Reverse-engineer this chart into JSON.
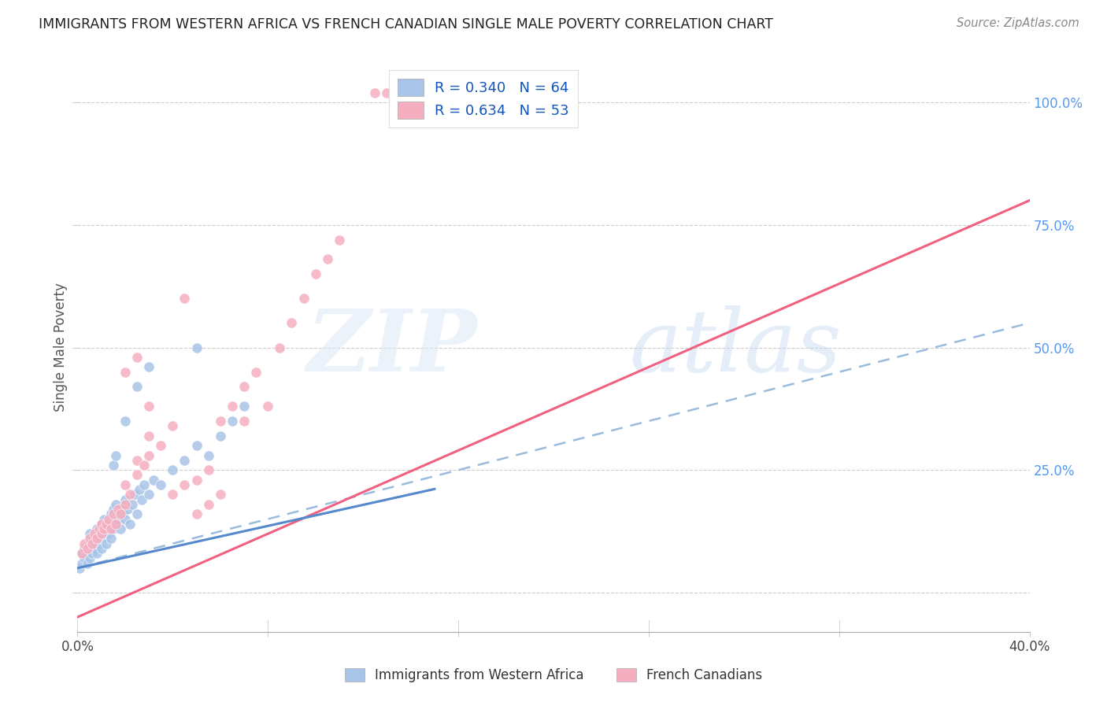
{
  "title": "IMMIGRANTS FROM WESTERN AFRICA VS FRENCH CANADIAN SINGLE MALE POVERTY CORRELATION CHART",
  "source": "Source: ZipAtlas.com",
  "ylabel": "Single Male Poverty",
  "ytick_labels": [
    "",
    "25.0%",
    "50.0%",
    "75.0%",
    "100.0%"
  ],
  "ytick_values": [
    0,
    25,
    50,
    75,
    100
  ],
  "xlim": [
    0,
    40
  ],
  "ylim": [
    -8,
    108
  ],
  "blue_R": 0.34,
  "blue_N": 64,
  "pink_R": 0.634,
  "pink_N": 53,
  "blue_color": "#a8c4e8",
  "pink_color": "#f5aec0",
  "blue_line_color": "#5588cc",
  "blue_dash_color": "#99bbdd",
  "pink_line_color": "#f06080",
  "blue_line_x0": 0,
  "blue_line_y0": 5.0,
  "blue_line_x1": 40,
  "blue_line_y1": 48.0,
  "blue_dash_x0": 0,
  "blue_dash_y0": 5.0,
  "blue_dash_x1": 40,
  "blue_dash_y1": 55.0,
  "pink_line_x0": 0,
  "pink_line_y0": -5.0,
  "pink_line_x1": 40,
  "pink_line_y1": 80.0,
  "watermark_zip": "ZIP",
  "watermark_atlas": "atlas",
  "blue_points": [
    [
      0.1,
      5
    ],
    [
      0.2,
      6
    ],
    [
      0.2,
      8
    ],
    [
      0.3,
      7
    ],
    [
      0.3,
      9
    ],
    [
      0.4,
      6
    ],
    [
      0.4,
      8
    ],
    [
      0.5,
      7
    ],
    [
      0.5,
      10
    ],
    [
      0.5,
      12
    ],
    [
      0.6,
      8
    ],
    [
      0.6,
      10
    ],
    [
      0.7,
      9
    ],
    [
      0.7,
      11
    ],
    [
      0.8,
      8
    ],
    [
      0.8,
      11
    ],
    [
      0.8,
      13
    ],
    [
      0.9,
      10
    ],
    [
      0.9,
      12
    ],
    [
      1.0,
      9
    ],
    [
      1.0,
      11
    ],
    [
      1.0,
      14
    ],
    [
      1.1,
      12
    ],
    [
      1.1,
      15
    ],
    [
      1.2,
      10
    ],
    [
      1.2,
      13
    ],
    [
      1.3,
      12
    ],
    [
      1.3,
      14
    ],
    [
      1.4,
      11
    ],
    [
      1.4,
      16
    ],
    [
      1.5,
      13
    ],
    [
      1.5,
      17
    ],
    [
      1.6,
      14
    ],
    [
      1.6,
      18
    ],
    [
      1.7,
      15
    ],
    [
      1.8,
      13
    ],
    [
      1.8,
      17
    ],
    [
      1.9,
      16
    ],
    [
      2.0,
      15
    ],
    [
      2.0,
      19
    ],
    [
      2.1,
      17
    ],
    [
      2.2,
      14
    ],
    [
      2.3,
      18
    ],
    [
      2.4,
      20
    ],
    [
      2.5,
      16
    ],
    [
      2.6,
      21
    ],
    [
      2.7,
      19
    ],
    [
      2.8,
      22
    ],
    [
      3.0,
      20
    ],
    [
      3.2,
      23
    ],
    [
      3.5,
      22
    ],
    [
      4.0,
      25
    ],
    [
      4.5,
      27
    ],
    [
      5.0,
      30
    ],
    [
      5.5,
      28
    ],
    [
      6.0,
      32
    ],
    [
      6.5,
      35
    ],
    [
      7.0,
      38
    ],
    [
      1.5,
      26
    ],
    [
      1.6,
      28
    ],
    [
      2.0,
      35
    ],
    [
      2.5,
      42
    ],
    [
      3.0,
      46
    ],
    [
      5.0,
      50
    ]
  ],
  "pink_points": [
    [
      0.2,
      8
    ],
    [
      0.3,
      10
    ],
    [
      0.4,
      9
    ],
    [
      0.5,
      11
    ],
    [
      0.6,
      10
    ],
    [
      0.7,
      12
    ],
    [
      0.8,
      11
    ],
    [
      0.9,
      13
    ],
    [
      1.0,
      12
    ],
    [
      1.0,
      14
    ],
    [
      1.1,
      13
    ],
    [
      1.2,
      14
    ],
    [
      1.3,
      15
    ],
    [
      1.4,
      13
    ],
    [
      1.5,
      16
    ],
    [
      1.6,
      14
    ],
    [
      1.7,
      17
    ],
    [
      1.8,
      16
    ],
    [
      2.0,
      18
    ],
    [
      2.0,
      22
    ],
    [
      2.2,
      20
    ],
    [
      2.5,
      24
    ],
    [
      2.5,
      27
    ],
    [
      2.8,
      26
    ],
    [
      3.0,
      28
    ],
    [
      3.0,
      32
    ],
    [
      3.5,
      30
    ],
    [
      4.0,
      20
    ],
    [
      4.0,
      34
    ],
    [
      4.5,
      22
    ],
    [
      5.0,
      16
    ],
    [
      5.0,
      23
    ],
    [
      5.5,
      18
    ],
    [
      5.5,
      25
    ],
    [
      6.0,
      20
    ],
    [
      6.0,
      35
    ],
    [
      6.5,
      38
    ],
    [
      7.0,
      42
    ],
    [
      7.0,
      35
    ],
    [
      7.5,
      45
    ],
    [
      8.0,
      38
    ],
    [
      8.5,
      50
    ],
    [
      9.0,
      55
    ],
    [
      9.5,
      60
    ],
    [
      10.0,
      65
    ],
    [
      10.5,
      68
    ],
    [
      11.0,
      72
    ],
    [
      12.5,
      102
    ],
    [
      13.0,
      102
    ],
    [
      2.0,
      45
    ],
    [
      2.5,
      48
    ],
    [
      3.0,
      38
    ],
    [
      4.5,
      60
    ]
  ]
}
